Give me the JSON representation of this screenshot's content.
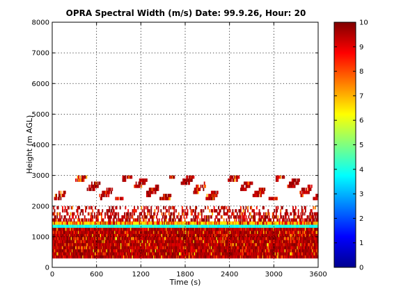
{
  "chart_data": {
    "type": "heatmap",
    "title": "OPRA Spectral Width (m/s)  Date: 99.9.26, Hour: 20",
    "xlabel": "Time (s)",
    "ylabel": "Height (m AGL)",
    "xlim": [
      0,
      3600
    ],
    "ylim": [
      0,
      8000
    ],
    "x_ticks": [
      "0",
      "600",
      "1200",
      "1800",
      "2400",
      "3000",
      "3600"
    ],
    "y_ticks": [
      "0",
      "1000",
      "2000",
      "3000",
      "4000",
      "5000",
      "6000",
      "7000",
      "8000"
    ],
    "grid": true,
    "colorbar": {
      "range": [
        0,
        10
      ],
      "ticks": [
        "0",
        "1",
        "2",
        "3",
        "4",
        "5",
        "6",
        "7",
        "8",
        "9",
        "10"
      ],
      "colormap": "jet"
    },
    "range_gate_m": 100,
    "data_height_range_m": [
      300,
      3000
    ],
    "layers": [
      {
        "heights_m": [
          300,
          1300
        ],
        "typical_value": 9.5,
        "coverage": "dense",
        "note": "mostly 9-10 with scattered 7-8"
      },
      {
        "heights_m": [
          1300,
          1400
        ],
        "typical_value": 4,
        "coverage": "continuous band",
        "note": "cyan, about 3.5-4.5"
      },
      {
        "heights_m": [
          1400,
          1500
        ],
        "typical_value": 7,
        "coverage": "continuous band",
        "note": "yellow/green, about 6-7.5"
      },
      {
        "heights_m": [
          1500,
          2000
        ],
        "typical_value": 9,
        "coverage": "sparse",
        "note": "red with orange/yellow speckles"
      },
      {
        "heights_m": [
          2200,
          3000
        ],
        "typical_value": 9.5,
        "coverage": "patchy",
        "note": "intermittent red patches"
      }
    ]
  }
}
